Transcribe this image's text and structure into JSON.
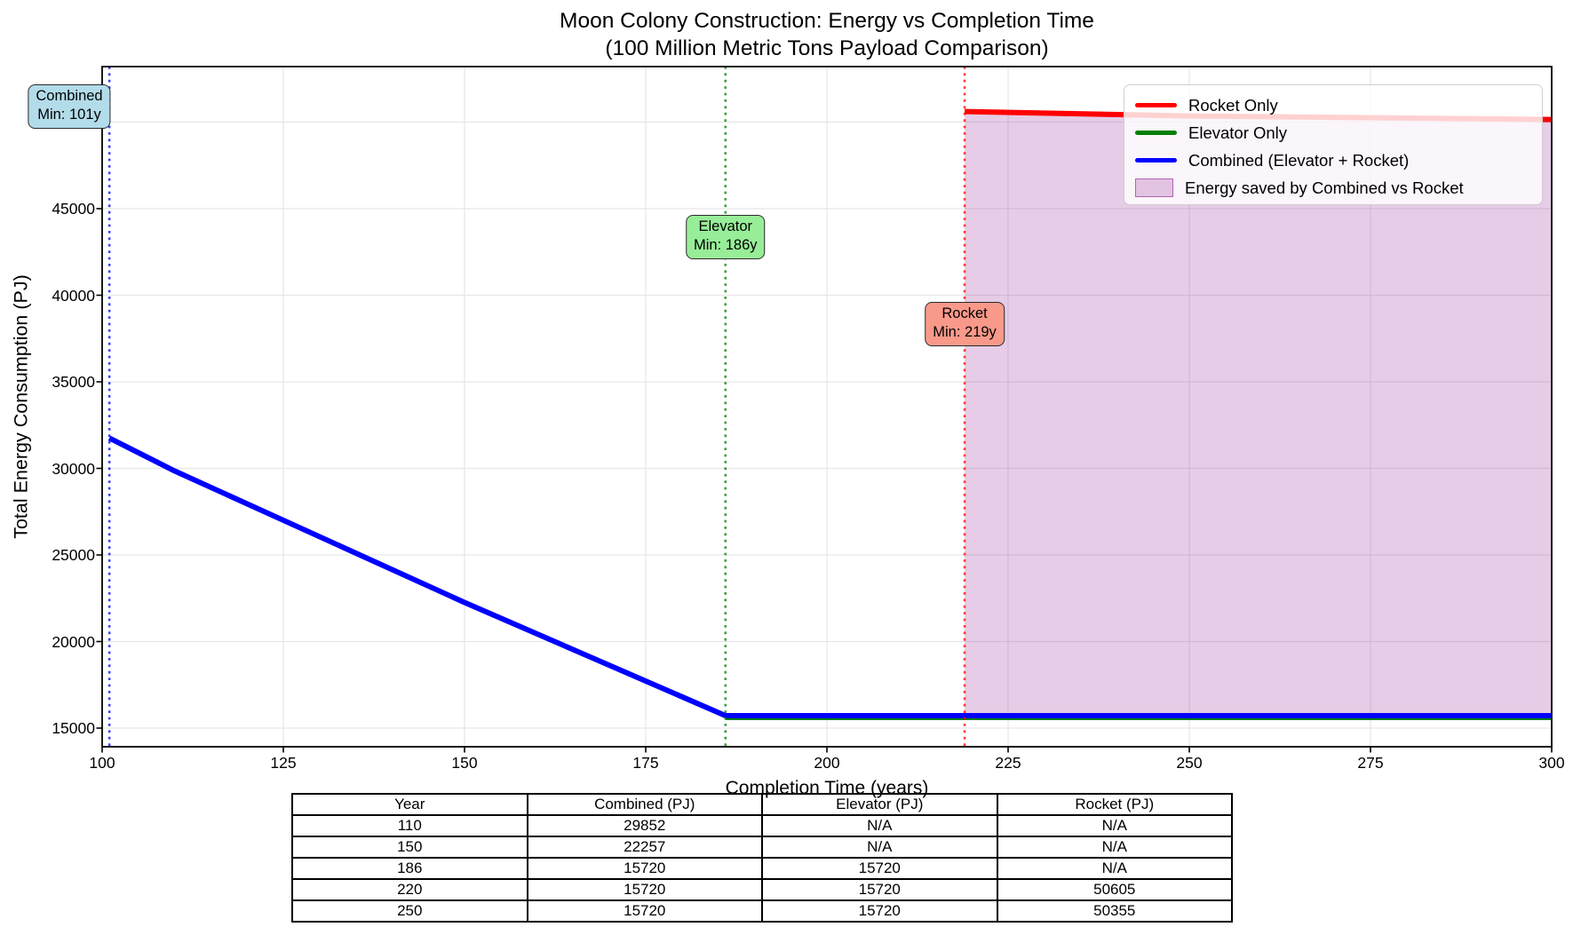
{
  "title": {
    "line1": "Moon Colony Construction: Energy vs Completion Time",
    "line2": "(100 Million Metric Tons Payload Comparison)"
  },
  "axes": {
    "xlabel": "Completion Time (years)",
    "ylabel": "Total Energy Consumption (PJ)",
    "x_tick_labels": [
      "100",
      "125",
      "150",
      "175",
      "200",
      "225",
      "250",
      "275",
      "300"
    ],
    "y_tick_labels": [
      "15000",
      "20000",
      "25000",
      "30000",
      "35000",
      "40000",
      "45000",
      "50000"
    ]
  },
  "chart_data": {
    "type": "line",
    "title": "Moon Colony Construction: Energy vs Completion Time (100 Million Metric Tons Payload Comparison)",
    "xlabel": "Completion Time (years)",
    "ylabel": "Total Energy Consumption (PJ)",
    "xlim": [
      100,
      300
    ],
    "ylim": [
      13900,
      53200
    ],
    "x_ticks": [
      100,
      125,
      150,
      175,
      200,
      225,
      250,
      275,
      300
    ],
    "y_ticks": [
      15000,
      20000,
      25000,
      30000,
      35000,
      40000,
      45000,
      50000
    ],
    "grid": true,
    "legend_position": "upper right",
    "series": [
      {
        "name": "Rocket Only",
        "color": "#ff0000",
        "width": 6,
        "points": [
          [
            219,
            50610
          ],
          [
            250,
            50355
          ],
          [
            300,
            50150
          ]
        ]
      },
      {
        "name": "Elevator Only",
        "color": "#007f00",
        "width": 5,
        "points": [
          [
            186,
            15720
          ],
          [
            300,
            15720
          ]
        ]
      },
      {
        "name": "Combined (Elevator + Rocket)",
        "color": "#0000ff",
        "width": 6,
        "points": [
          [
            101,
            31750
          ],
          [
            110,
            29852
          ],
          [
            150,
            22257
          ],
          [
            186,
            15720
          ],
          [
            300,
            15720
          ]
        ]
      }
    ],
    "fill_between": {
      "name": "Energy saved by Combined vs Rocket",
      "color": "rgba(128,0,128,0.2)",
      "x_from": 219,
      "x_to": 300,
      "upper": "Rocket Only",
      "lower_value": 15720
    },
    "vlines": [
      {
        "year": 101,
        "color": "#0000ff",
        "style": "dotted",
        "label": "Combined Min: 101y"
      },
      {
        "year": 186,
        "color": "#007f00",
        "style": "dotted",
        "label": "Elevator Min: 186y"
      },
      {
        "year": 219,
        "color": "#ff0000",
        "style": "dotted",
        "label": "Rocket Min: 219y"
      }
    ]
  },
  "legend": {
    "items": [
      {
        "label": "Rocket Only",
        "swatch": "line",
        "color": "#ff0000"
      },
      {
        "label": "Elevator Only",
        "swatch": "line",
        "color": "#007f00"
      },
      {
        "label": "Combined (Elevator + Rocket)",
        "swatch": "line",
        "color": "#0000ff"
      },
      {
        "label": "Energy saved by Combined vs Rocket",
        "swatch": "patch",
        "color": "rgba(128,0,128,0.2)",
        "border": "rgba(128,0,128,0.5)"
      }
    ]
  },
  "annotations": [
    {
      "name": "combined-min",
      "lines": [
        "Combined",
        "Min: 101y"
      ],
      "year": 101,
      "bg": "#b3dcea"
    },
    {
      "name": "elevator-min",
      "lines": [
        "Elevator",
        "Min: 186y"
      ],
      "year": 186,
      "bg": "#98ed98"
    },
    {
      "name": "rocket-min",
      "lines": [
        "Rocket",
        "Min: 219y"
      ],
      "year": 219,
      "bg": "#f9998a"
    }
  ],
  "table": {
    "headers": [
      "Year",
      "Combined (PJ)",
      "Elevator (PJ)",
      "Rocket (PJ)"
    ],
    "rows": [
      [
        "110",
        "29852",
        "N/A",
        "N/A"
      ],
      [
        "150",
        "22257",
        "N/A",
        "N/A"
      ],
      [
        "186",
        "15720",
        "15720",
        "N/A"
      ],
      [
        "220",
        "15720",
        "15720",
        "50605"
      ],
      [
        "250",
        "15720",
        "15720",
        "50355"
      ]
    ]
  },
  "colors": {
    "rocket_line": "#ff0000",
    "elevator_line": "#007f00",
    "combined_line": "#0000ff",
    "saved_fill": "rgba(128,0,128,0.2)",
    "anno_combined_bg": "#b3dcea",
    "anno_elevator_bg": "#98ed98",
    "anno_rocket_bg": "#f9998a",
    "grid": "#e6e6e6"
  }
}
